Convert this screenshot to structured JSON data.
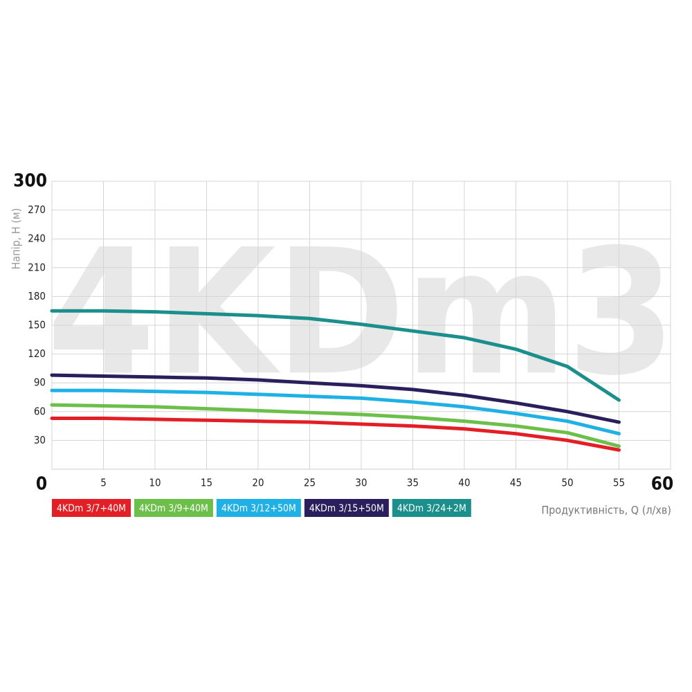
{
  "chart_data": {
    "type": "line",
    "watermark": "4KDm3",
    "x_label": "Продуктивність, Q (л/хв)",
    "y_label": "Напір, Н (м)",
    "x": [
      0,
      5,
      10,
      15,
      20,
      25,
      30,
      35,
      40,
      45,
      50,
      55
    ],
    "series": [
      {
        "name": "4KDm 3/7+40M",
        "color": "#e31e24",
        "values": [
          53,
          53,
          52,
          51,
          50,
          49,
          47,
          45,
          42,
          37,
          30,
          20
        ]
      },
      {
        "name": "4KDm 3/9+40M",
        "color": "#6cc04a",
        "values": [
          67,
          66,
          65,
          63,
          61,
          59,
          57,
          54,
          50,
          45,
          38,
          24
        ]
      },
      {
        "name": "4KDm 3/12+50M",
        "color": "#1fb0e6",
        "values": [
          82,
          82,
          81,
          80,
          78,
          76,
          74,
          70,
          65,
          58,
          50,
          37
        ]
      },
      {
        "name": "4KDm 3/15+50M",
        "color": "#2a1f5c",
        "values": [
          98,
          97,
          96,
          95,
          93,
          90,
          87,
          83,
          77,
          69,
          60,
          49
        ]
      },
      {
        "name": "4KDm 3/24+2M",
        "color": "#1a8f8c",
        "values": [
          165,
          165,
          164,
          162,
          160,
          157,
          151,
          144,
          137,
          125,
          107,
          72
        ]
      }
    ],
    "xlim": [
      0,
      60
    ],
    "xticks": [
      0,
      5,
      10,
      15,
      20,
      25,
      30,
      35,
      40,
      45,
      50,
      55,
      60
    ],
    "ylim": [
      0,
      300
    ],
    "yticks": [
      30,
      60,
      90,
      120,
      150,
      180,
      210,
      240,
      270,
      300
    ],
    "grid": true
  }
}
